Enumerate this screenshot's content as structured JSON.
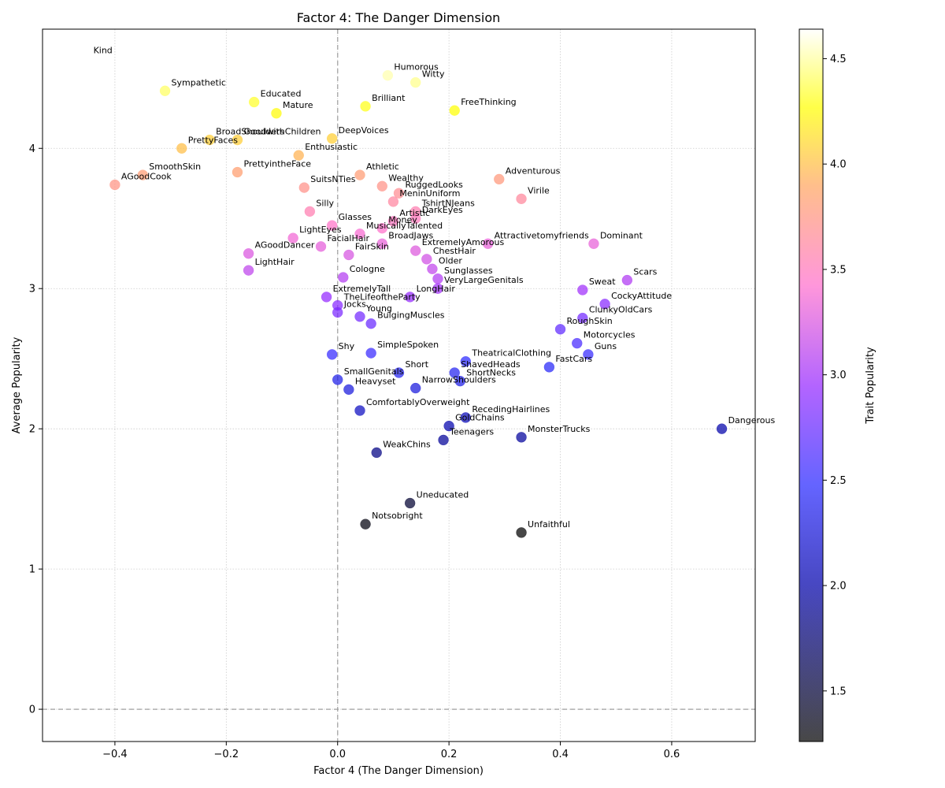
{
  "chart_data": {
    "type": "scatter",
    "title": "Factor 4: The Danger Dimension",
    "xlabel": "Factor 4 (The Danger Dimension)",
    "ylabel": "Average Popularity",
    "xlim": [
      -0.53,
      0.75
    ],
    "ylim": [
      -0.23,
      4.85
    ],
    "xticks": [
      -0.4,
      -0.2,
      0.0,
      0.2,
      0.4,
      0.6
    ],
    "xtick_labels": [
      "−0.4",
      "−0.2",
      "0.0",
      "0.2",
      "0.4",
      "0.6"
    ],
    "yticks": [
      0,
      1,
      2,
      3,
      4
    ],
    "ytick_labels": [
      "0",
      "1",
      "2",
      "3",
      "4"
    ],
    "grid": true,
    "reference_lines": {
      "x": 0,
      "y": 0
    },
    "colorbar": {
      "label": "Trait Popularity",
      "colormap": "gnuplot2",
      "range": [
        1.26,
        4.64
      ],
      "ticks": [
        1.5,
        2.0,
        2.5,
        3.0,
        3.5,
        4.0,
        4.5
      ],
      "tick_labels": [
        "1.5",
        "2.0",
        "2.5",
        "3.0",
        "3.5",
        "4.0",
        "4.5"
      ]
    },
    "points": [
      {
        "label": "Kind",
        "x": -0.45,
        "y": 4.64
      },
      {
        "label": "Humorous",
        "x": 0.09,
        "y": 4.52
      },
      {
        "label": "Witty",
        "x": 0.14,
        "y": 4.47
      },
      {
        "label": "Sympathetic",
        "x": -0.31,
        "y": 4.41
      },
      {
        "label": "Educated",
        "x": -0.15,
        "y": 4.33
      },
      {
        "label": "Brilliant",
        "x": 0.05,
        "y": 4.3
      },
      {
        "label": "FreeThinking",
        "x": 0.21,
        "y": 4.27
      },
      {
        "label": "Mature",
        "x": -0.11,
        "y": 4.25
      },
      {
        "label": "DeepVoices",
        "x": -0.01,
        "y": 4.07
      },
      {
        "label": "BroadShoulders",
        "x": -0.23,
        "y": 4.06
      },
      {
        "label": "GoodwithChildren",
        "x": -0.18,
        "y": 4.06
      },
      {
        "label": "PrettyFaces",
        "x": -0.28,
        "y": 4.0
      },
      {
        "label": "Enthusiastic",
        "x": -0.07,
        "y": 3.95
      },
      {
        "label": "PrettyintheFace",
        "x": -0.18,
        "y": 3.83
      },
      {
        "label": "SmoothSkin",
        "x": -0.35,
        "y": 3.81
      },
      {
        "label": "Athletic",
        "x": 0.04,
        "y": 3.81
      },
      {
        "label": "Adventurous",
        "x": 0.29,
        "y": 3.78
      },
      {
        "label": "AGoodCook",
        "x": -0.4,
        "y": 3.74
      },
      {
        "label": "Wealthy",
        "x": 0.08,
        "y": 3.73
      },
      {
        "label": "SuitsNTies",
        "x": -0.06,
        "y": 3.72
      },
      {
        "label": "RuggedLooks",
        "x": 0.11,
        "y": 3.68
      },
      {
        "label": "Virile",
        "x": 0.33,
        "y": 3.64
      },
      {
        "label": "MeninUniform",
        "x": 0.1,
        "y": 3.62
      },
      {
        "label": "Silly",
        "x": -0.05,
        "y": 3.55
      },
      {
        "label": "TshirtNJeans",
        "x": 0.14,
        "y": 3.55
      },
      {
        "label": "DarkEyes",
        "x": 0.14,
        "y": 3.5
      },
      {
        "label": "Artistic",
        "x": 0.1,
        "y": 3.48
      },
      {
        "label": "Glasses",
        "x": -0.01,
        "y": 3.45
      },
      {
        "label": "Money",
        "x": 0.08,
        "y": 3.43
      },
      {
        "label": "MusicallyTalented",
        "x": 0.04,
        "y": 3.39
      },
      {
        "label": "LightEyes",
        "x": -0.08,
        "y": 3.36
      },
      {
        "label": "BroadJaws",
        "x": 0.08,
        "y": 3.32
      },
      {
        "label": "Attractivetomyfriends",
        "x": 0.27,
        "y": 3.32
      },
      {
        "label": "Dominant",
        "x": 0.46,
        "y": 3.32
      },
      {
        "label": "FacialHair",
        "x": -0.03,
        "y": 3.3
      },
      {
        "label": "ExtremelyAmorous",
        "x": 0.14,
        "y": 3.27
      },
      {
        "label": "AGoodDancer",
        "x": -0.16,
        "y": 3.25
      },
      {
        "label": "FairSkin",
        "x": 0.02,
        "y": 3.24
      },
      {
        "label": "ChestHair",
        "x": 0.16,
        "y": 3.21
      },
      {
        "label": "Older",
        "x": 0.17,
        "y": 3.14
      },
      {
        "label": "LightHair",
        "x": -0.16,
        "y": 3.13
      },
      {
        "label": "Cologne",
        "x": 0.01,
        "y": 3.08
      },
      {
        "label": "Sunglasses",
        "x": 0.18,
        "y": 3.07
      },
      {
        "label": "Scars",
        "x": 0.52,
        "y": 3.06
      },
      {
        "label": "VeryLargeGenitals",
        "x": 0.18,
        "y": 3.0
      },
      {
        "label": "Sweat",
        "x": 0.44,
        "y": 2.99
      },
      {
        "label": "ExtremelyTall",
        "x": -0.02,
        "y": 2.94
      },
      {
        "label": "LongHair",
        "x": 0.13,
        "y": 2.94
      },
      {
        "label": "CockyAttitude",
        "x": 0.48,
        "y": 2.89
      },
      {
        "label": "TheLifeoftheParty",
        "x": 0.0,
        "y": 2.88
      },
      {
        "label": "Jocks",
        "x": 0.0,
        "y": 2.83
      },
      {
        "label": "Young",
        "x": 0.04,
        "y": 2.8
      },
      {
        "label": "ClunkyOldCars",
        "x": 0.44,
        "y": 2.79
      },
      {
        "label": "BulgingMuscles",
        "x": 0.06,
        "y": 2.75
      },
      {
        "label": "RoughSkin",
        "x": 0.4,
        "y": 2.71
      },
      {
        "label": "Motorcycles",
        "x": 0.43,
        "y": 2.61
      },
      {
        "label": "SimpleSpoken",
        "x": 0.06,
        "y": 2.54
      },
      {
        "label": "Shy",
        "x": -0.01,
        "y": 2.53
      },
      {
        "label": "Guns",
        "x": 0.45,
        "y": 2.53
      },
      {
        "label": "TheatricalClothing",
        "x": 0.23,
        "y": 2.48
      },
      {
        "label": "FastCars",
        "x": 0.38,
        "y": 2.44
      },
      {
        "label": "ShavedHeads",
        "x": 0.21,
        "y": 2.4
      },
      {
        "label": "Short",
        "x": 0.11,
        "y": 2.4
      },
      {
        "label": "SmallGenitals",
        "x": 0.0,
        "y": 2.35
      },
      {
        "label": "ShortNecks",
        "x": 0.22,
        "y": 2.34
      },
      {
        "label": "NarrowShoulders",
        "x": 0.14,
        "y": 2.29
      },
      {
        "label": "Heavyset",
        "x": 0.02,
        "y": 2.28
      },
      {
        "label": "ComfortablyOverweight",
        "x": 0.04,
        "y": 2.13
      },
      {
        "label": "RecedingHairlines",
        "x": 0.23,
        "y": 2.08
      },
      {
        "label": "GoldChains",
        "x": 0.2,
        "y": 2.02
      },
      {
        "label": "Dangerous",
        "x": 0.69,
        "y": 2.0
      },
      {
        "label": "MonsterTrucks",
        "x": 0.33,
        "y": 1.94
      },
      {
        "label": "Teenagers",
        "x": 0.19,
        "y": 1.92
      },
      {
        "label": "WeakChins",
        "x": 0.07,
        "y": 1.83
      },
      {
        "label": "Uneducated",
        "x": 0.13,
        "y": 1.47
      },
      {
        "label": "Notsobright",
        "x": 0.05,
        "y": 1.32
      },
      {
        "label": "Unfaithful",
        "x": 0.33,
        "y": 1.26
      }
    ]
  }
}
